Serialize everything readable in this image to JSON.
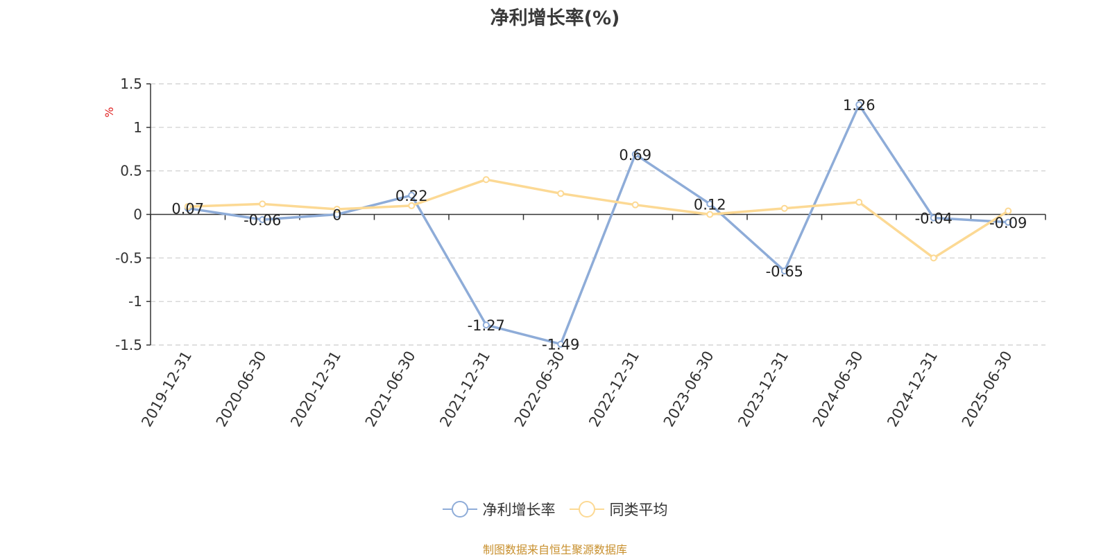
{
  "chart_data": {
    "type": "line",
    "title": "净利增长率(%)",
    "ylabel": "%",
    "ylim": [
      -1.5,
      1.5
    ],
    "yticks": [
      1.5,
      1,
      0.5,
      0,
      -0.5,
      -1,
      -1.5
    ],
    "grid": true,
    "legend_position": "bottom",
    "categories": [
      "2019-12-31",
      "2020-06-30",
      "2020-12-31",
      "2021-06-30",
      "2021-12-31",
      "2022-06-30",
      "2022-12-31",
      "2023-06-30",
      "2023-12-31",
      "2024-06-30",
      "2024-12-31",
      "2025-06-30"
    ],
    "series": [
      {
        "name": "净利增长率",
        "color": "#8eacd8",
        "values": [
          0.07,
          -0.06,
          0,
          0.22,
          -1.27,
          -1.49,
          0.69,
          0.12,
          -0.65,
          1.26,
          -0.04,
          -0.09
        ],
        "show_labels": true
      },
      {
        "name": "同类平均",
        "color": "#fcd994",
        "values": [
          0.09,
          0.12,
          0.06,
          0.1,
          0.4,
          0.24,
          0.11,
          0.0,
          0.07,
          0.14,
          -0.5,
          0.04
        ],
        "show_labels": false
      }
    ]
  },
  "source_note": "制图数据来自恒生聚源数据库"
}
